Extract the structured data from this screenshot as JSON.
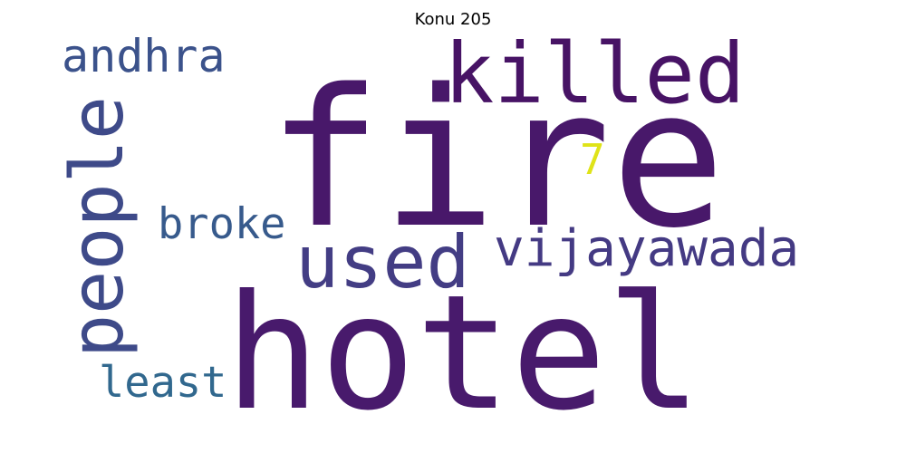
{
  "chart_data": {
    "type": "wordcloud",
    "title": "Konu 205",
    "words": [
      {
        "text": "fire",
        "color": "#48186a"
      },
      {
        "text": "hotel",
        "color": "#481a6c"
      },
      {
        "text": "killed",
        "color": "#471365"
      },
      {
        "text": "people",
        "color": "#3e4a89"
      },
      {
        "text": "used",
        "color": "#433d84"
      },
      {
        "text": "vijayawada",
        "color": "#443a83"
      },
      {
        "text": "andhra",
        "color": "#3b528b"
      },
      {
        "text": "broke",
        "color": "#375a8c"
      },
      {
        "text": "least",
        "color": "#31688e"
      },
      {
        "text": "7",
        "color": "#dfe318"
      }
    ]
  }
}
